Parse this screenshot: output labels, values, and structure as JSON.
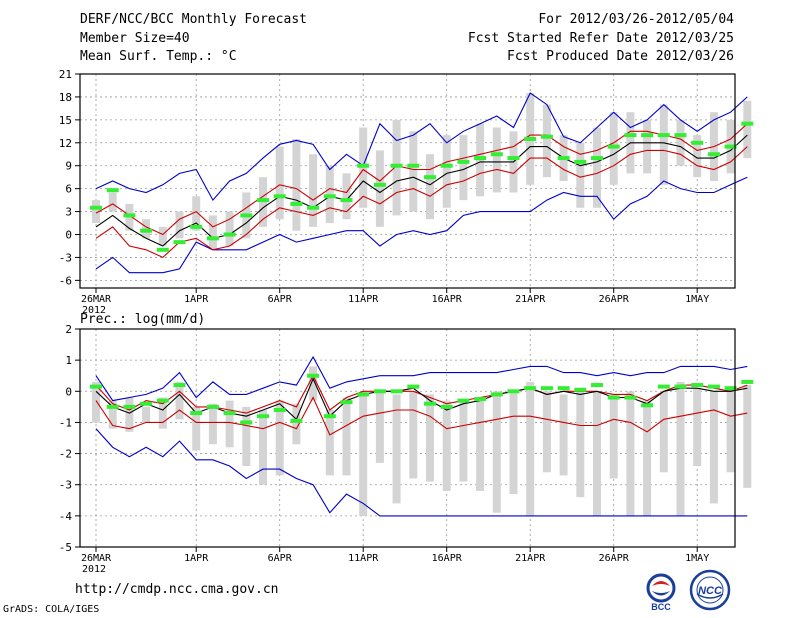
{
  "header": {
    "title": "DERF/NCC/BCC Monthly Forecast",
    "member_size": "Member Size=40",
    "variable": "Mean Surf. Temp.: °C",
    "fcst_period": "For 2012/03/26-2012/05/04",
    "fcst_started": "Fcst Started Refer Date 2012/03/25",
    "fcst_produced": "Fcst Produced Date 2012/03/26"
  },
  "footer": {
    "url": "http://cmdp.ncc.cma.gov.cn",
    "grads": "GrADS: COLA/IGES",
    "logo1": "BCC",
    "logo2": "NCC"
  },
  "colors": {
    "max_min": "#0000cc",
    "spread": "#cc0000",
    "mean": "#000000",
    "box": "#d4d4d4",
    "marker": "#33ee33"
  },
  "chart_data": [
    {
      "type": "line",
      "title": "Mean Surf. Temp.: °C",
      "x": [
        "26MAR",
        "27MAR",
        "28MAR",
        "29MAR",
        "30MAR",
        "31MAR",
        "1APR",
        "2APR",
        "3APR",
        "4APR",
        "5APR",
        "6APR",
        "7APR",
        "8APR",
        "9APR",
        "10APR",
        "11APR",
        "12APR",
        "13APR",
        "14APR",
        "15APR",
        "16APR",
        "17APR",
        "18APR",
        "19APR",
        "20APR",
        "21APR",
        "22APR",
        "23APR",
        "24APR",
        "25APR",
        "26APR",
        "27APR",
        "28APR",
        "29APR",
        "30APR",
        "1MAY",
        "2MAY",
        "3MAY",
        "4MAY"
      ],
      "xtick_labels": [
        "26MAR",
        "1APR",
        "6APR",
        "11APR",
        "16APR",
        "21APR",
        "26APR",
        "1MAY"
      ],
      "xtick_days": [
        0,
        6,
        11,
        16,
        21,
        26,
        31,
        36
      ],
      "year_label": "2012",
      "ylim": [
        -7,
        21
      ],
      "yticks": [
        -6,
        -3,
        0,
        3,
        6,
        9,
        12,
        15,
        18,
        21
      ],
      "series": [
        {
          "name": "max",
          "values": [
            6,
            7,
            6,
            5.5,
            6.5,
            8,
            8.5,
            4.5,
            7,
            8,
            10,
            11.8,
            12.3,
            11.8,
            8.5,
            10.5,
            9,
            14.5,
            12.3,
            13,
            14.5,
            12,
            13.5,
            14.5,
            15.5,
            14,
            18.5,
            17,
            12.8,
            12,
            14,
            16,
            14,
            15,
            17,
            15,
            13.5,
            15,
            16,
            18
          ]
        },
        {
          "name": "upper",
          "values": [
            2.8,
            4,
            2.5,
            1,
            0,
            2,
            3,
            1,
            2,
            3.5,
            5,
            6.5,
            6,
            4.5,
            6,
            5.5,
            8.5,
            7,
            9,
            8.5,
            8.5,
            9.5,
            10,
            10.5,
            11,
            11.5,
            13,
            13,
            11.5,
            10.5,
            11,
            12,
            13.5,
            13.5,
            13,
            12.5,
            11,
            11.5,
            12.5,
            14.5
          ]
        },
        {
          "name": "mean",
          "values": [
            1,
            2.5,
            0.8,
            -0.5,
            -1.5,
            0.5,
            1.5,
            -0.5,
            0,
            1.5,
            3.5,
            5,
            4.5,
            3.5,
            5,
            4.5,
            7,
            5.5,
            7,
            7.5,
            6.5,
            8,
            8.5,
            9.5,
            9.5,
            9.5,
            11.5,
            11.5,
            10,
            9,
            9.5,
            10.5,
            12,
            12,
            12,
            11.5,
            10,
            10,
            11,
            13
          ]
        },
        {
          "name": "lower",
          "values": [
            -0.5,
            1,
            -1.5,
            -2,
            -3,
            -1,
            -0.5,
            -2,
            -1.5,
            0,
            2,
            3.5,
            3,
            2.5,
            3.5,
            3,
            5,
            4,
            5.5,
            6,
            5,
            6.5,
            7,
            8,
            8.5,
            8,
            10,
            10,
            8.5,
            7.5,
            8,
            9,
            10.5,
            11,
            11,
            10.5,
            9,
            8.5,
            9.5,
            11.5
          ]
        },
        {
          "name": "min",
          "values": [
            -4.5,
            -3,
            -5,
            -5,
            -5,
            -4.5,
            -1,
            -2,
            -2,
            -2,
            -1,
            0,
            -1,
            -0.5,
            0,
            0.5,
            0.5,
            -1.5,
            0,
            0.5,
            0,
            0.5,
            2.5,
            3,
            3,
            3,
            3,
            4.5,
            5.5,
            5,
            5,
            2,
            4,
            5,
            7,
            6,
            5.5,
            5.5,
            6.5,
            7.5
          ]
        },
        {
          "name": "box_high",
          "values": [
            4.5,
            5.5,
            4,
            2,
            1,
            3,
            5,
            2.5,
            3,
            5.5,
            7.5,
            11.5,
            12.5,
            10.5,
            9,
            8,
            14,
            11,
            15,
            13.5,
            10.5,
            13,
            13,
            14.5,
            14,
            13.5,
            18.5,
            17,
            13,
            12,
            14,
            16,
            16,
            15,
            17,
            15,
            13,
            16,
            15,
            17.5
          ]
        },
        {
          "name": "box_low",
          "values": [
            1.5,
            3,
            0.5,
            -0.5,
            -1.5,
            -0.5,
            0.5,
            -2,
            -1.5,
            -0.5,
            1,
            2,
            0.5,
            1,
            1.5,
            2,
            3.5,
            1,
            2.5,
            3,
            2,
            3.5,
            4.5,
            5,
            5.5,
            5.5,
            6.5,
            7.5,
            7,
            3.5,
            3.5,
            6.5,
            8,
            8,
            6.5,
            9,
            7.5,
            7,
            8,
            10
          ]
        },
        {
          "name": "marker",
          "values": [
            3.5,
            5.8,
            2.5,
            0.5,
            -2,
            -1,
            1,
            -0.5,
            0,
            2.5,
            4.5,
            5,
            4,
            3.5,
            5,
            4.5,
            9,
            6.5,
            9,
            9,
            7.5,
            9,
            9.5,
            10,
            10.5,
            10,
            12.5,
            12.8,
            10,
            9.5,
            10,
            11.5,
            13,
            13,
            13,
            13,
            12,
            10.5,
            11.5,
            14.5
          ]
        }
      ]
    },
    {
      "type": "line",
      "title": "Prec.: log(mm/d)",
      "x": [
        "26MAR",
        "27MAR",
        "28MAR",
        "29MAR",
        "30MAR",
        "31MAR",
        "1APR",
        "2APR",
        "3APR",
        "4APR",
        "5APR",
        "6APR",
        "7APR",
        "8APR",
        "9APR",
        "10APR",
        "11APR",
        "12APR",
        "13APR",
        "14APR",
        "15APR",
        "16APR",
        "17APR",
        "18APR",
        "19APR",
        "20APR",
        "21APR",
        "22APR",
        "23APR",
        "24APR",
        "25APR",
        "26APR",
        "27APR",
        "28APR",
        "29APR",
        "30APR",
        "1MAY",
        "2MAY",
        "3MAY",
        "4MAY"
      ],
      "xtick_labels": [
        "26MAR",
        "1APR",
        "6APR",
        "11APR",
        "16APR",
        "21APR",
        "26APR",
        "1MAY"
      ],
      "xtick_days": [
        0,
        6,
        11,
        16,
        21,
        26,
        31,
        36
      ],
      "year_label": "2012",
      "ylim": [
        -5,
        2
      ],
      "yticks": [
        -5,
        -4,
        -3,
        -2,
        -1,
        0,
        1,
        2
      ],
      "series": [
        {
          "name": "max",
          "values": [
            0.5,
            -0.3,
            -0.2,
            -0.1,
            0.1,
            0.6,
            -0.2,
            0.3,
            -0.1,
            -0.1,
            0.1,
            0.3,
            0.2,
            1.1,
            0.1,
            0.3,
            0.4,
            0.5,
            0.5,
            0.5,
            0.6,
            0.6,
            0.6,
            0.6,
            0.6,
            0.7,
            0.8,
            0.8,
            0.6,
            0.6,
            0.5,
            0.6,
            0.5,
            0.6,
            0.6,
            0.8,
            0.8,
            0.8,
            0.7,
            0.8
          ]
        },
        {
          "name": "upper",
          "values": [
            0.2,
            -0.4,
            -0.6,
            -0.3,
            -0.4,
            0,
            -0.5,
            -0.5,
            -0.6,
            -0.7,
            -0.5,
            -0.3,
            -0.5,
            0.5,
            -0.6,
            -0.2,
            0,
            0,
            0,
            0,
            -0.2,
            -0.4,
            -0.3,
            -0.2,
            -0.1,
            0,
            0.1,
            -0.1,
            0,
            0,
            0,
            -0.1,
            -0.1,
            -0.3,
            0,
            0.2,
            0.2,
            0.1,
            0,
            0.2
          ]
        },
        {
          "name": "mean",
          "values": [
            0,
            -0.5,
            -0.7,
            -0.4,
            -0.6,
            -0.1,
            -0.7,
            -0.5,
            -0.7,
            -0.8,
            -0.6,
            -0.4,
            -0.9,
            0.4,
            -0.8,
            -0.3,
            -0.1,
            0,
            0,
            0.1,
            -0.3,
            -0.6,
            -0.4,
            -0.3,
            -0.1,
            0,
            0.1,
            -0.1,
            0,
            -0.1,
            0,
            -0.2,
            -0.2,
            -0.4,
            0,
            0.1,
            0.1,
            0,
            0,
            0.1
          ]
        },
        {
          "name": "lower",
          "values": [
            -0.3,
            -1.1,
            -1.2,
            -1,
            -1,
            -0.6,
            -1,
            -1,
            -1,
            -1.1,
            -1.2,
            -1,
            -1.2,
            -0.2,
            -1.4,
            -1.1,
            -0.8,
            -0.7,
            -0.6,
            -0.6,
            -0.8,
            -1.2,
            -1.1,
            -1,
            -0.9,
            -0.8,
            -0.8,
            -0.9,
            -1,
            -1.1,
            -1.1,
            -0.9,
            -1,
            -1.3,
            -0.9,
            -0.8,
            -0.7,
            -0.6,
            -0.8,
            -0.7
          ]
        },
        {
          "name": "min",
          "values": [
            -1.2,
            -1.8,
            -2.1,
            -1.8,
            -2.1,
            -1.6,
            -2.2,
            -2.2,
            -2.4,
            -2.8,
            -2.5,
            -2.5,
            -2.8,
            -3,
            -3.9,
            -3.3,
            -3.6,
            -4,
            -4,
            -4,
            -4,
            -4,
            -4,
            -4,
            -4,
            -4,
            -4,
            -4,
            -4,
            -4,
            -4,
            -4,
            -4,
            -4,
            -4,
            -4,
            -4,
            -4,
            -4,
            -4
          ]
        },
        {
          "name": "box_high",
          "values": [
            0.3,
            -0.3,
            -0.2,
            -0.5,
            -0.2,
            0.3,
            -0.5,
            -0.4,
            -0.3,
            -0.5,
            -0.6,
            -0.3,
            -0.4,
            0.8,
            -0.6,
            -0.2,
            0,
            0,
            -0.1,
            0,
            -0.1,
            -0.3,
            -0.3,
            -0.2,
            0,
            0,
            0.3,
            0,
            -0.1,
            0,
            0,
            -0.1,
            0,
            -0.3,
            0,
            0.3,
            0.1,
            0,
            0.1,
            0.2
          ]
        },
        {
          "name": "box_low",
          "values": [
            -1,
            -1.2,
            -1.3,
            -1,
            -1.2,
            -0.9,
            -1.9,
            -1.7,
            -1.8,
            -2.4,
            -3,
            -2.7,
            -1.7,
            -0.3,
            -2.7,
            -2.7,
            -4,
            -2.3,
            -3.6,
            -2.8,
            -2.9,
            -3.2,
            -2.9,
            -3.2,
            -3.9,
            -3.3,
            -4,
            -2.6,
            -2.7,
            -3.4,
            -4,
            -2.8,
            -4,
            -4,
            -2.6,
            -4,
            -2.4,
            -3.6,
            -2.6,
            -3.1
          ]
        },
        {
          "name": "marker",
          "values": [
            0.15,
            -0.5,
            -0.5,
            -0.4,
            -0.3,
            0.2,
            -0.7,
            -0.5,
            -0.7,
            -1,
            -0.8,
            -0.6,
            -0.95,
            0.5,
            -0.8,
            -0.35,
            -0.1,
            0,
            0,
            0.15,
            -0.4,
            -0.5,
            -0.3,
            -0.25,
            -0.1,
            0,
            0.1,
            0.1,
            0.1,
            0.05,
            0.2,
            -0.2,
            -0.2,
            -0.45,
            0.15,
            0.15,
            0.2,
            0.15,
            0.1,
            0.3
          ]
        }
      ]
    }
  ]
}
